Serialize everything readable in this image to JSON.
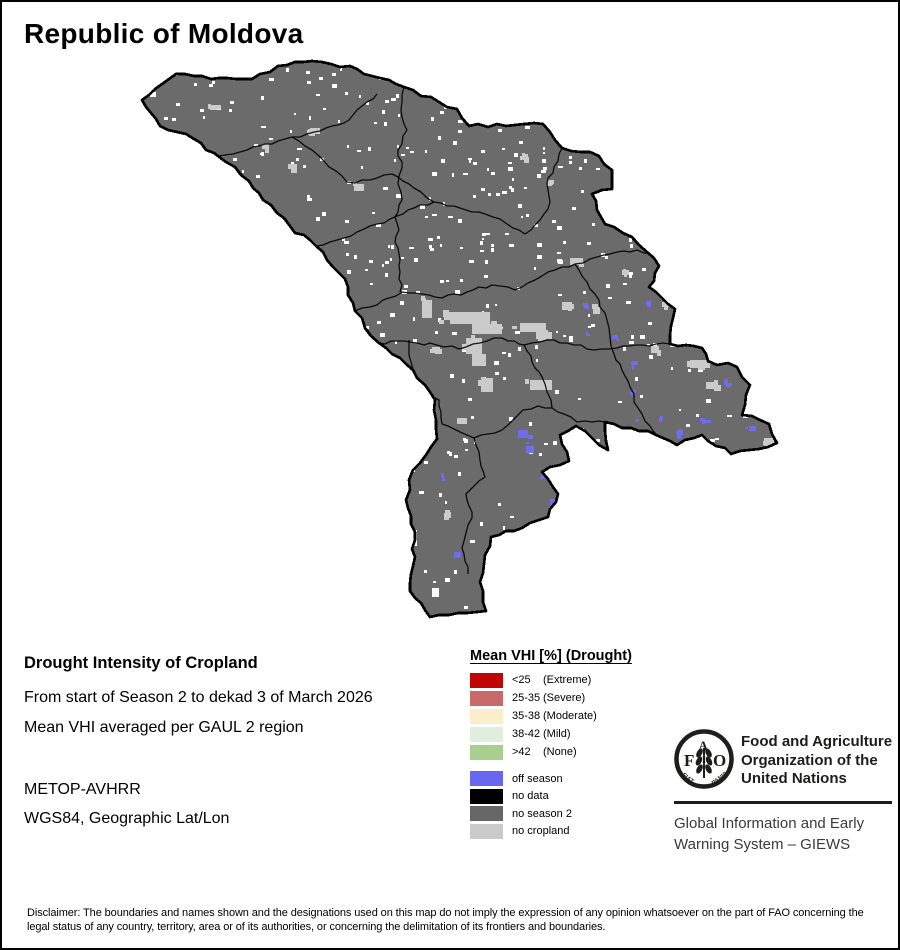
{
  "page": {
    "title": "Republic of Moldova",
    "background_color": "#FFFFFF",
    "border_color": "#000000"
  },
  "map": {
    "country": "Republic of Moldova",
    "fill_color": "#6B6B6B",
    "outline_color": "#000000",
    "speckle_colors": {
      "off_season": "#6E6EEC",
      "no_cropland": "#CBCBCB",
      "cloud_white": "#FFFFFF"
    }
  },
  "info_block": {
    "heading": "Drought Intensity of Cropland",
    "line1": "From start of Season 2 to dekad 3 of March 2026",
    "line2": "Mean VHI averaged per GAUL 2 region",
    "line3": "METOP-AVHRR",
    "line4": "WGS84, Geographic Lat/Lon"
  },
  "legend": {
    "title": "Mean VHI [%] (Drought)",
    "drought_classes": [
      {
        "range": "<25",
        "label": "(Extreme)",
        "color": "#C00505"
      },
      {
        "range": "25-35",
        "label": "(Severe)",
        "color": "#C96A6A"
      },
      {
        "range": "35-38",
        "label": "(Moderate)",
        "color": "#FCEDCB"
      },
      {
        "range": "38-42",
        "label": "(Mild)",
        "color": "#E0EEDD"
      },
      {
        "range": ">42",
        "label": "(None)",
        "color": "#A9CF90"
      }
    ],
    "other_classes": [
      {
        "label": "off season",
        "color": "#6767EF"
      },
      {
        "label": "no data",
        "color": "#000000"
      },
      {
        "label": "no season 2",
        "color": "#676767"
      },
      {
        "label": "no cropland",
        "color": "#CBCBCB"
      }
    ]
  },
  "footer": {
    "fao_logo_letters": {
      "f": "F",
      "a": "A",
      "o": "O"
    },
    "fao_motto_left": "FIAT",
    "fao_motto_right": "PANIS",
    "fao_name_line1": "Food and Agriculture",
    "fao_name_line2": "Organization of the",
    "fao_name_line3": "United Nations",
    "giews_line1": "Global Information and Early",
    "giews_line2": "Warning System – GIEWS"
  },
  "disclaimer": "Disclaimer: The boundaries and names shown and the designations used on this map do not imply the expression of any opinion whatsoever on the part of FAO concerning the legal status of any country, territory, area or of its authorities, or concerning the delimitation of its frontiers and boundaries."
}
